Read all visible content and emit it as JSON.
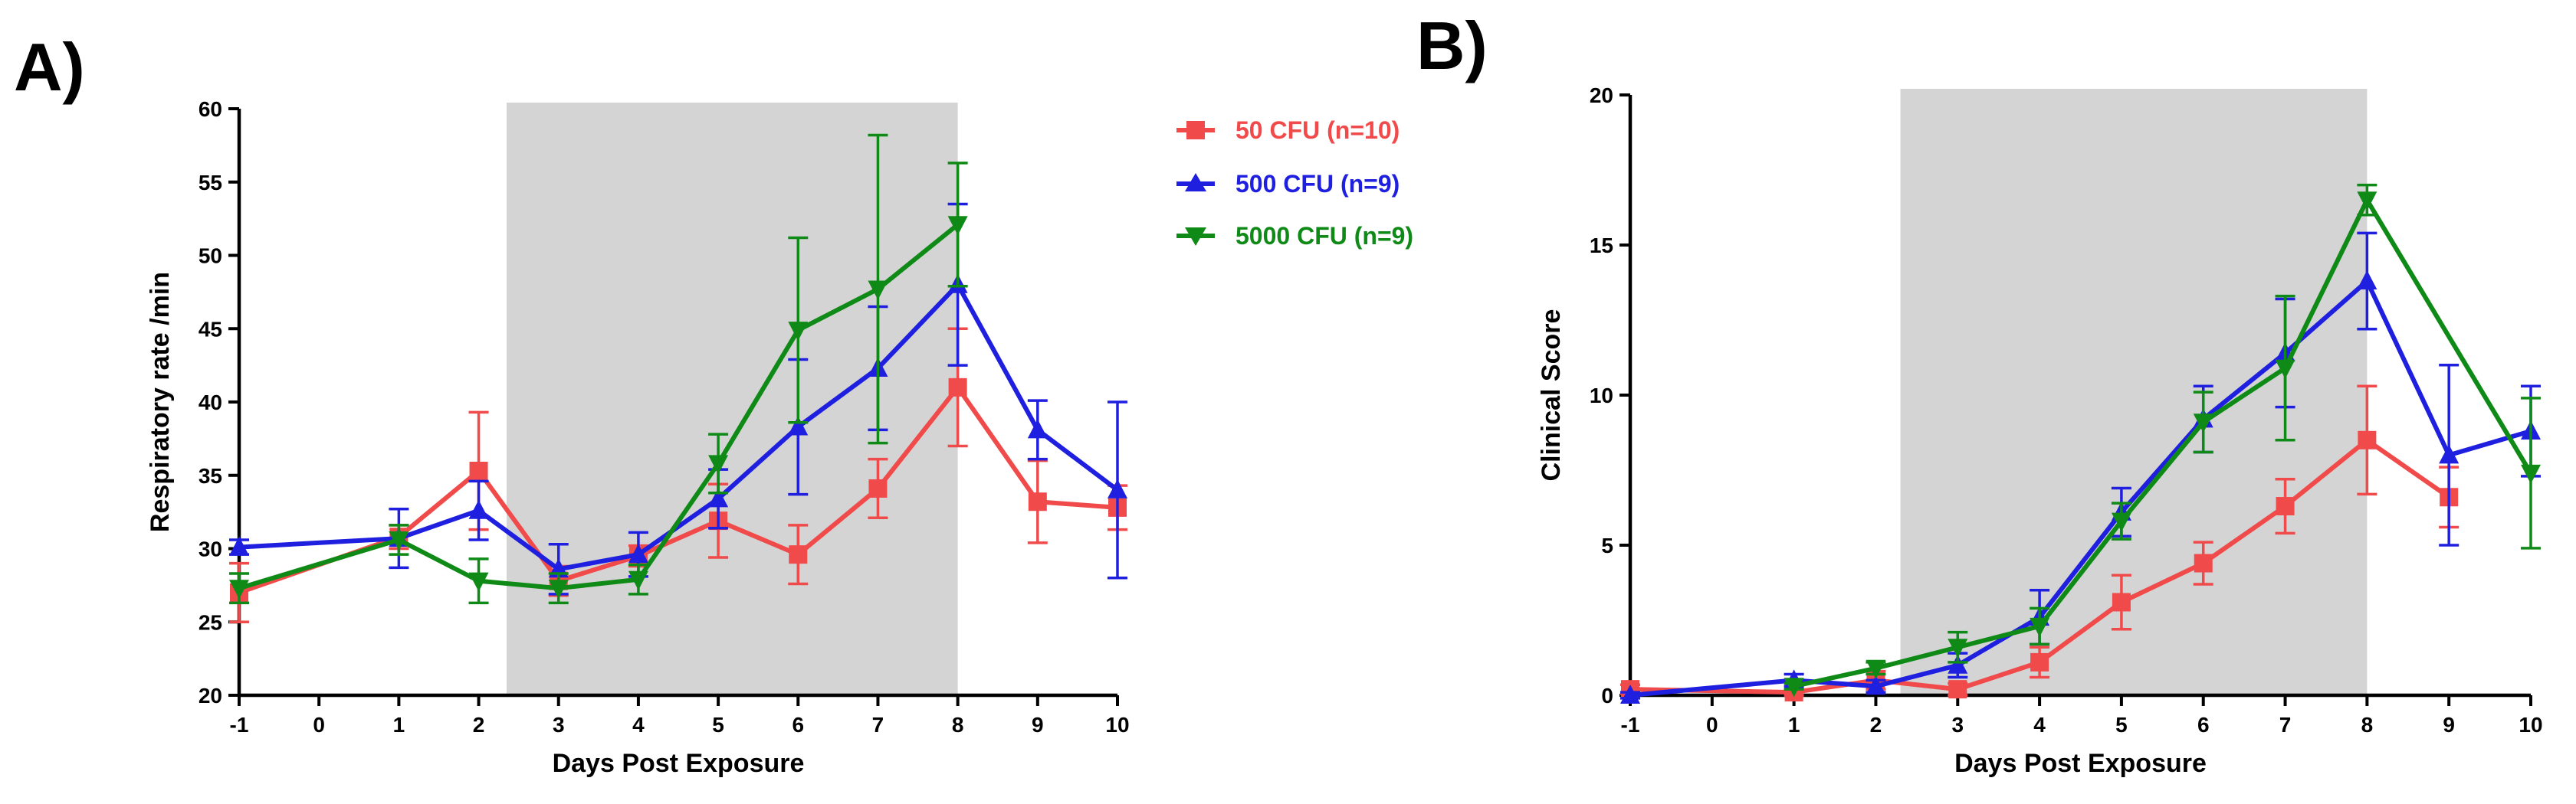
{
  "chart_data": [
    {
      "panel_label": "A)",
      "type": "line",
      "xlabel": "Days Post Exposure",
      "ylabel": "Respiratory rate /min",
      "xlim": [
        -1,
        10
      ],
      "ylim": [
        20,
        60
      ],
      "x_ticks": [
        -1,
        0,
        1,
        2,
        3,
        4,
        5,
        6,
        7,
        8,
        9,
        10
      ],
      "y_ticks": [
        20,
        25,
        30,
        35,
        40,
        45,
        50,
        55,
        60
      ],
      "shaded_x_range": [
        2.35,
        8
      ],
      "series": [
        {
          "name": "50 CFU (n=10)",
          "color": "#f04a4a",
          "marker": "square",
          "points": [
            {
              "x": -1,
              "y": 27.0,
              "err": 2.0
            },
            {
              "x": 1,
              "y": 30.8,
              "err": 0.8
            },
            {
              "x": 2,
              "y": 35.3,
              "err": 4.0
            },
            {
              "x": 3,
              "y": 27.8,
              "err": 1.0
            },
            {
              "x": 4,
              "y": 29.5,
              "err": 0.7
            },
            {
              "x": 5,
              "y": 31.9,
              "err": 2.5
            },
            {
              "x": 6,
              "y": 29.6,
              "err": 2.0
            },
            {
              "x": 7,
              "y": 34.1,
              "err": 2.0
            },
            {
              "x": 8,
              "y": 41.0,
              "err": 4.0
            },
            {
              "x": 9,
              "y": 33.2,
              "err": 2.8
            },
            {
              "x": 10,
              "y": 32.8,
              "err": 1.5
            }
          ]
        },
        {
          "name": "500 CFU (n=9)",
          "color": "#1f1fe0",
          "marker": "triangle",
          "points": [
            {
              "x": -1,
              "y": 30.1,
              "err": 0.5
            },
            {
              "x": 1,
              "y": 30.7,
              "err": 2.0
            },
            {
              "x": 2,
              "y": 32.6,
              "err": 2.0
            },
            {
              "x": 3,
              "y": 28.6,
              "err": 1.7
            },
            {
              "x": 4,
              "y": 29.6,
              "err": 1.5
            },
            {
              "x": 5,
              "y": 33.4,
              "err": 2.0
            },
            {
              "x": 6,
              "y": 38.3,
              "err": 4.6
            },
            {
              "x": 7,
              "y": 42.3,
              "err": 4.2
            },
            {
              "x": 8,
              "y": 48.0,
              "err": 5.5
            },
            {
              "x": 9,
              "y": 38.1,
              "err": 2.0
            },
            {
              "x": 10,
              "y": 34.0,
              "err": 6.0
            }
          ]
        },
        {
          "name": "5000 CFU (n=9)",
          "color": "#0f8a17",
          "marker": "inverted-triangle",
          "points": [
            {
              "x": -1,
              "y": 27.3,
              "err": 1.0
            },
            {
              "x": 1,
              "y": 30.6,
              "err": 1.0
            },
            {
              "x": 2,
              "y": 27.8,
              "err": 1.5
            },
            {
              "x": 3,
              "y": 27.3,
              "err": 1.0
            },
            {
              "x": 4,
              "y": 27.9,
              "err": 1.0
            },
            {
              "x": 5,
              "y": 35.8,
              "err": 2.0
            },
            {
              "x": 6,
              "y": 44.9,
              "err": 6.3
            },
            {
              "x": 7,
              "y": 47.7,
              "err": 10.5
            },
            {
              "x": 8,
              "y": 52.1,
              "err": 4.2
            }
          ]
        }
      ]
    },
    {
      "panel_label": "B)",
      "type": "line",
      "xlabel": "Days Post Exposure",
      "ylabel": "Clinical Score",
      "xlim": [
        -1,
        10
      ],
      "ylim": [
        0,
        20
      ],
      "x_ticks": [
        -1,
        0,
        1,
        2,
        3,
        4,
        5,
        6,
        7,
        8,
        9,
        10
      ],
      "y_ticks": [
        0,
        5,
        10,
        15,
        20
      ],
      "shaded_x_range": [
        2.3,
        8
      ],
      "series": [
        {
          "name": "50 CFU (n=10)",
          "color": "#f04a4a",
          "marker": "square",
          "points": [
            {
              "x": -1,
              "y": 0.2,
              "err": 0.15
            },
            {
              "x": 1,
              "y": 0.1,
              "err": 0.1
            },
            {
              "x": 2,
              "y": 0.5,
              "err": 0.3
            },
            {
              "x": 3,
              "y": 0.2,
              "err": 0.2
            },
            {
              "x": 4,
              "y": 1.1,
              "err": 0.5
            },
            {
              "x": 5,
              "y": 3.1,
              "err": 0.9
            },
            {
              "x": 6,
              "y": 4.4,
              "err": 0.7
            },
            {
              "x": 7,
              "y": 6.3,
              "err": 0.9
            },
            {
              "x": 8,
              "y": 8.5,
              "err": 1.8
            },
            {
              "x": 9,
              "y": 6.6,
              "err": 1.0
            }
          ]
        },
        {
          "name": "500 CFU (n=9)",
          "color": "#1f1fe0",
          "marker": "triangle",
          "points": [
            {
              "x": -1,
              "y": 0.0,
              "err": 0.1
            },
            {
              "x": 1,
              "y": 0.5,
              "err": 0.2
            },
            {
              "x": 2,
              "y": 0.3,
              "err": 0.2
            },
            {
              "x": 3,
              "y": 1.0,
              "err": 0.4
            },
            {
              "x": 4,
              "y": 2.6,
              "err": 0.9
            },
            {
              "x": 5,
              "y": 6.1,
              "err": 0.8
            },
            {
              "x": 6,
              "y": 9.2,
              "err": 1.1
            },
            {
              "x": 7,
              "y": 11.4,
              "err": 1.8
            },
            {
              "x": 8,
              "y": 13.8,
              "err": 1.6
            },
            {
              "x": 9,
              "y": 8.0,
              "err": 3.0
            },
            {
              "x": 10,
              "y": 8.8,
              "err": 1.5
            }
          ]
        },
        {
          "name": "5000 CFU (n=9)",
          "color": "#0f8a17",
          "marker": "inverted-triangle",
          "points": [
            {
              "x": 1,
              "y": 0.3,
              "err": 0.1
            },
            {
              "x": 2,
              "y": 0.9,
              "err": 0.2
            },
            {
              "x": 3,
              "y": 1.6,
              "err": 0.5
            },
            {
              "x": 4,
              "y": 2.3,
              "err": 0.6
            },
            {
              "x": 5,
              "y": 5.8,
              "err": 0.6
            },
            {
              "x": 6,
              "y": 9.1,
              "err": 1.0
            },
            {
              "x": 7,
              "y": 10.9,
              "err": 2.4
            },
            {
              "x": 8,
              "y": 16.5,
              "err": 0.5
            },
            {
              "x": 10,
              "y": 7.4,
              "err": 2.5
            }
          ]
        }
      ]
    }
  ],
  "legend": [
    {
      "label": "50 CFU (n=10)",
      "color": "#f04a4a",
      "marker": "square"
    },
    {
      "label": "500 CFU (n=9)",
      "color": "#1f1fe0",
      "marker": "triangle"
    },
    {
      "label": "5000 CFU (n=9)",
      "color": "#0f8a17",
      "marker": "inverted-triangle"
    }
  ]
}
